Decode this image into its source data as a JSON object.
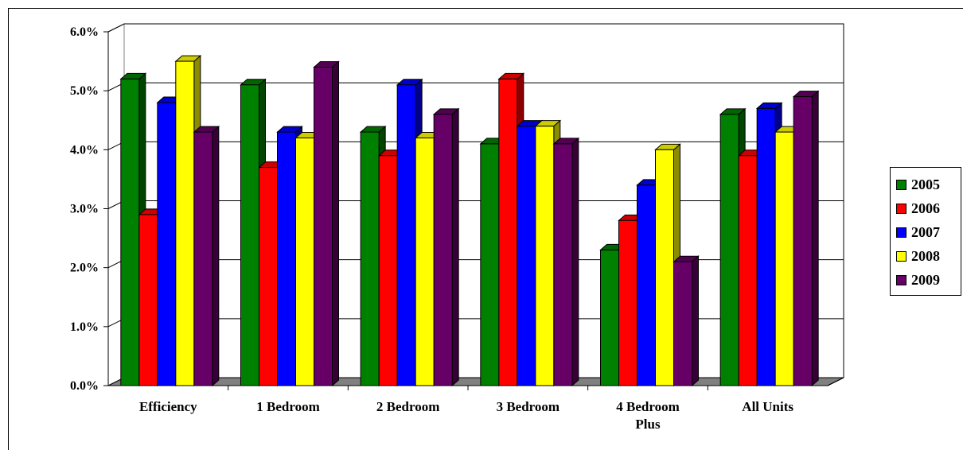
{
  "chart_data": {
    "type": "bar",
    "title": "",
    "xlabel": "",
    "ylabel": "",
    "categories": [
      "Efficiency",
      "1 Bedroom",
      "2 Bedroom",
      "3 Bedroom",
      "4  Bedroom Plus",
      "All Units"
    ],
    "category_lines": [
      [
        "Efficiency"
      ],
      [
        "1 Bedroom"
      ],
      [
        "2 Bedroom"
      ],
      [
        "3 Bedroom"
      ],
      [
        "4  Bedroom",
        "Plus"
      ],
      [
        "All Units"
      ]
    ],
    "y_ticks": [
      "0.0%",
      "1.0%",
      "2.0%",
      "3.0%",
      "4.0%",
      "5.0%",
      "6.0%"
    ],
    "ylim": [
      0,
      6
    ],
    "grid": true,
    "legend_position": "right",
    "series": [
      {
        "name": "2005",
        "color": "#008000",
        "values": [
          5.2,
          5.1,
          4.3,
          4.1,
          2.3,
          4.6
        ]
      },
      {
        "name": "2006",
        "color": "#ff0000",
        "values": [
          2.9,
          3.7,
          3.9,
          5.2,
          2.8,
          3.9
        ]
      },
      {
        "name": "2007",
        "color": "#0000ff",
        "values": [
          4.8,
          4.3,
          5.1,
          4.4,
          3.4,
          4.7
        ]
      },
      {
        "name": "2008",
        "color": "#ffff00",
        "values": [
          5.5,
          4.2,
          4.2,
          4.4,
          4.0,
          4.3
        ]
      },
      {
        "name": "2009",
        "color": "#660066",
        "values": [
          4.3,
          5.4,
          4.6,
          4.1,
          2.1,
          4.9
        ]
      }
    ]
  },
  "legend": {
    "items": [
      {
        "label": "2005",
        "color": "#008000"
      },
      {
        "label": "2006",
        "color": "#ff0000"
      },
      {
        "label": "2007",
        "color": "#0000ff"
      },
      {
        "label": "2008",
        "color": "#ffff00"
      },
      {
        "label": "2009",
        "color": "#660066"
      }
    ]
  }
}
